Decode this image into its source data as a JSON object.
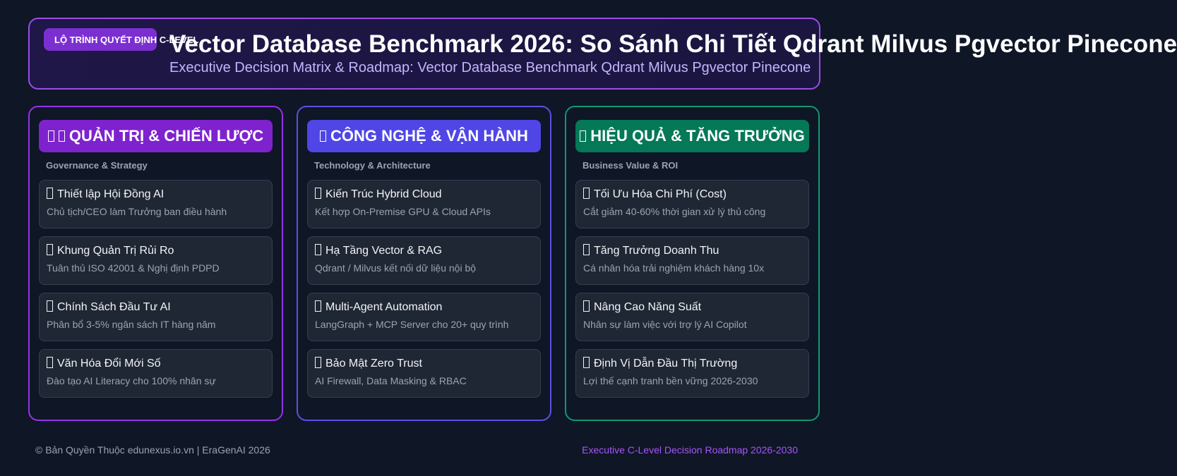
{
  "header": {
    "badge": "LỘ TRÌNH QUYẾT ĐỊNH C-LEVEL",
    "title": "Vector Database Benchmark 2026: So Sánh Chi Tiết Qdrant Milvus Pgvector Pinecone",
    "subtitle": "Executive Decision Matrix & Roadmap: Vector Database Benchmark Qdrant Milvus Pgvector Pinecone"
  },
  "columns": [
    {
      "title": "QUẢN TRỊ & CHIẾN LƯỢC",
      "subtitle": "Governance & Strategy",
      "items": [
        {
          "title": "Thiết lập Hội Đồng AI",
          "desc": "Chủ tịch/CEO làm Trưởng ban điều hành"
        },
        {
          "title": "Khung Quản Trị Rủi Ro",
          "desc": "Tuân thủ ISO 42001 & Nghị định PDPD"
        },
        {
          "title": "Chính Sách Đầu Tư AI",
          "desc": "Phân bổ 3-5% ngân sách IT hàng năm"
        },
        {
          "title": "Văn Hóa Đổi Mới Số",
          "desc": "Đào tạo AI Literacy cho 100% nhân sự"
        }
      ]
    },
    {
      "title": "CÔNG NGHỆ & VẬN HÀNH",
      "subtitle": "Technology & Architecture",
      "items": [
        {
          "title": "Kiến Trúc Hybrid Cloud",
          "desc": "Kết hợp On-Premise GPU & Cloud APIs"
        },
        {
          "title": "Hạ Tầng Vector & RAG",
          "desc": "Qdrant / Milvus kết nối dữ liệu nội bộ"
        },
        {
          "title": "Multi-Agent Automation",
          "desc": "LangGraph + MCP Server cho 20+ quy trình"
        },
        {
          "title": "Bảo Mật Zero Trust",
          "desc": "AI Firewall, Data Masking & RBAC"
        }
      ]
    },
    {
      "title": "HIỆU QUẢ & TĂNG TRƯỞNG",
      "subtitle": "Business Value & ROI",
      "items": [
        {
          "title": "Tối Ưu Hóa Chi Phí (Cost)",
          "desc": "Cắt giảm 40-60% thời gian xử lý thủ công"
        },
        {
          "title": "Tăng Trưởng Doanh Thu",
          "desc": "Cá nhân hóa trải nghiệm khách hàng 10x"
        },
        {
          "title": "Nâng Cao Năng Suất",
          "desc": "Nhân sự làm việc với trợ lý AI Copilot"
        },
        {
          "title": "Định Vị Dẫn Đầu Thị Trường",
          "desc": "Lợi thế cạnh tranh bền vững 2026-2030"
        }
      ]
    }
  ],
  "footer": {
    "left": "© Bản Quyền Thuộc edunexus.io.vn | EraGenAI 2026",
    "right": "Executive C-Level Decision Roadmap 2026-2030"
  }
}
